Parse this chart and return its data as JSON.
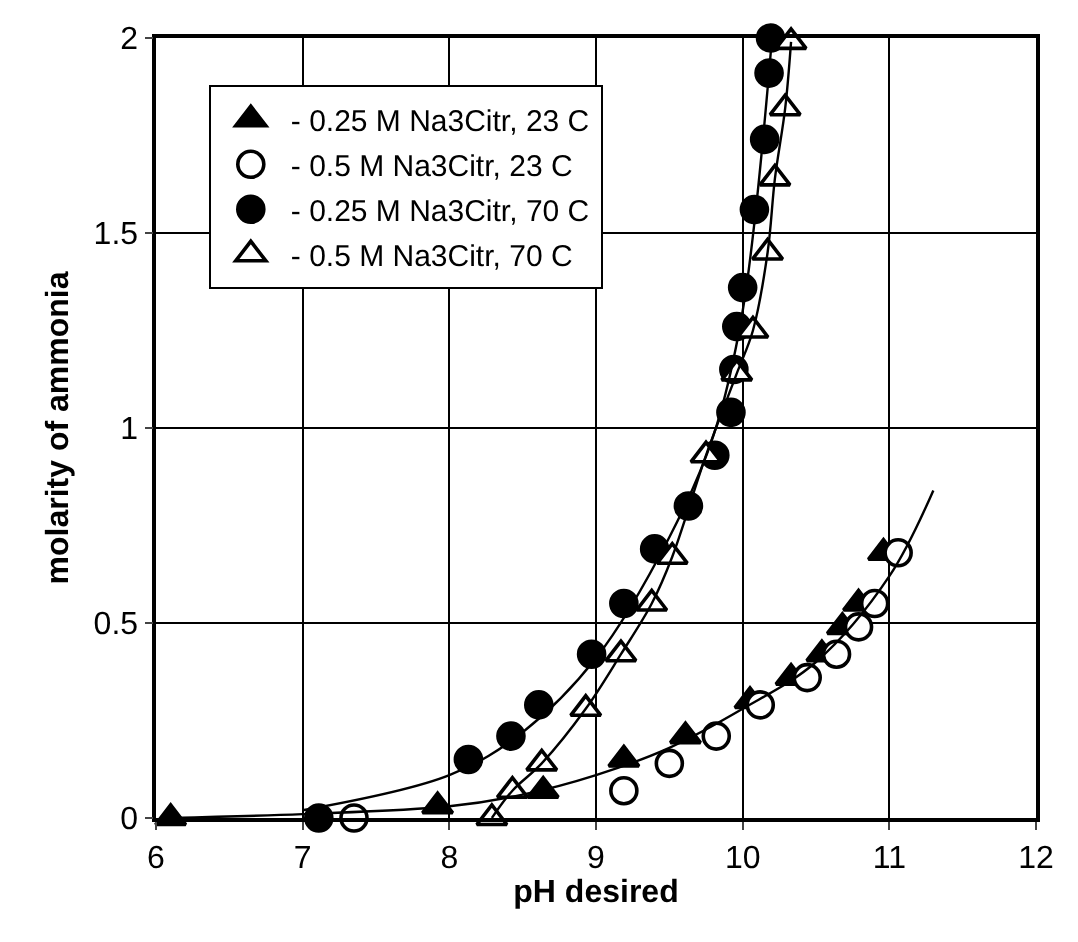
{
  "chart_data": {
    "type": "scatter",
    "xlabel": "pH desired",
    "ylabel": "molarity of ammonia",
    "xlim": [
      6,
      12
    ],
    "ylim": [
      0,
      2
    ],
    "xticks": [
      6,
      7,
      8,
      9,
      10,
      11,
      12
    ],
    "yticks": [
      0,
      0.5,
      1,
      1.5,
      2
    ],
    "grid": true,
    "legend": "top left",
    "series": [
      {
        "name": "- 0.25 M Na3Citr, 23 C",
        "color": "#000000",
        "marker": "triangle",
        "x": [
          6.1,
          7.92,
          8.64,
          9.19,
          9.61,
          10.05,
          10.33,
          10.54,
          10.68,
          10.79,
          10.96
        ],
        "values": [
          0,
          0.03,
          0.07,
          0.15,
          0.21,
          0.3,
          0.36,
          0.42,
          0.49,
          0.55,
          0.68
        ]
      },
      {
        "name": "- 0.5 M Na3Citr, 23 C",
        "color": "#ffffff",
        "marker": "circle",
        "x": [
          7.35,
          9.19,
          9.5,
          9.82,
          10.12,
          10.44,
          10.64,
          10.79,
          10.9,
          11.06
        ],
        "values": [
          0,
          0.07,
          0.14,
          0.21,
          0.29,
          0.36,
          0.42,
          0.49,
          0.55,
          0.68
        ]
      },
      {
        "name": "- 0.25 M Na3Citr, 70 C",
        "color": "#000000",
        "marker": "circle",
        "x": [
          7.11,
          8.13,
          8.42,
          8.61,
          8.97,
          9.19,
          9.4,
          9.63,
          9.81,
          9.92,
          9.94,
          9.96,
          10.0,
          10.08,
          10.15,
          10.18,
          10.19
        ],
        "values": [
          0,
          0.15,
          0.21,
          0.29,
          0.42,
          0.55,
          0.69,
          0.8,
          0.93,
          1.04,
          1.15,
          1.26,
          1.36,
          1.56,
          1.74,
          1.91,
          2.0
        ]
      },
      {
        "name": "- 0.5 M Na3Citr, 70 C",
        "color": "#ffffff",
        "marker": "triangle",
        "x": [
          8.29,
          8.43,
          8.63,
          8.93,
          9.17,
          9.38,
          9.52,
          9.75,
          9.96,
          10.07,
          10.17,
          10.22,
          10.29,
          10.33
        ],
        "values": [
          0,
          0.07,
          0.14,
          0.28,
          0.42,
          0.55,
          0.67,
          0.93,
          1.14,
          1.25,
          1.45,
          1.64,
          1.82,
          1.99
        ]
      },
      {
        "type": "line",
        "color": "#000000",
        "marker": "none",
        "x": [
          6.1,
          7,
          8,
          8.5,
          9,
          9.5,
          10,
          10.5,
          11,
          11.3
        ],
        "values": [
          0,
          0.01,
          0.03,
          0.06,
          0.11,
          0.18,
          0.28,
          0.4,
          0.62,
          0.84
        ]
      },
      {
        "type": "line",
        "color": "#000000",
        "marker": "none",
        "x": [
          7.0,
          8,
          8.5,
          9,
          9.5,
          9.8,
          10,
          10.2
        ],
        "values": [
          0.02,
          0.11,
          0.22,
          0.41,
          0.72,
          0.98,
          1.3,
          2.0
        ]
      },
      {
        "type": "line",
        "color": "#000000",
        "marker": "none",
        "x": [
          8.29,
          8.43,
          8.63,
          8.93,
          9.17,
          9.38,
          9.52,
          9.75,
          9.96,
          10.07,
          10.17,
          10.22,
          10.29,
          10.33
        ],
        "values": [
          0,
          0.07,
          0.14,
          0.28,
          0.42,
          0.55,
          0.67,
          0.93,
          1.14,
          1.25,
          1.45,
          1.64,
          1.82,
          1.99
        ]
      }
    ]
  }
}
